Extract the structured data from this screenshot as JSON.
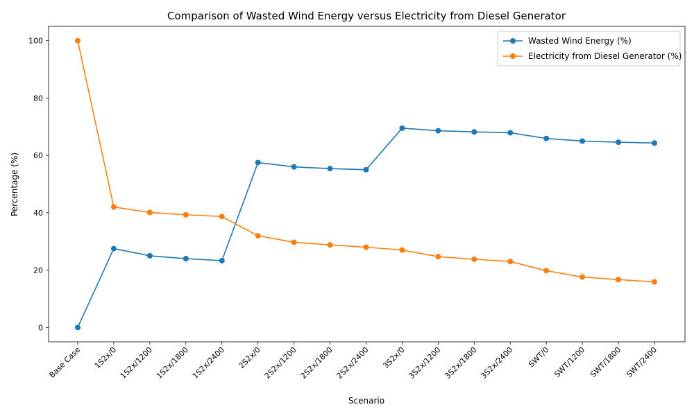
{
  "chart_data": {
    "type": "line",
    "title": "Comparison of Wasted Wind Energy versus Electricity from Diesel Generator",
    "xlabel": "Scenario",
    "ylabel": "Percentage (%)",
    "categories": [
      "Base Case",
      "1S2x/0",
      "1S2x/1200",
      "1S2x/1800",
      "1S2x/2400",
      "2S2x/0",
      "2S2x/1200",
      "2S2x/1800",
      "2S2x/2400",
      "3S2x/0",
      "3S2x/1200",
      "3S2x/1800",
      "3S2x/2400",
      "SWT/0",
      "SWT/1200",
      "SWT/1800",
      "SWT/2400"
    ],
    "ylim": [
      -5,
      105
    ],
    "yticks": [
      0,
      20,
      40,
      60,
      80,
      100
    ],
    "grid": false,
    "legend_position": "top-right",
    "series": [
      {
        "name": "Wasted Wind Energy (%)",
        "color": "#1f77b4",
        "values": [
          0,
          27.5,
          25,
          24,
          23.3,
          57.5,
          56,
          55.4,
          55,
          69.5,
          68.6,
          68.2,
          67.9,
          65.9,
          65,
          64.6,
          64.3
        ]
      },
      {
        "name": "Electricity from Diesel Generator (%)",
        "color": "#ff7f0e",
        "values": [
          100,
          42,
          40.1,
          39.3,
          38.7,
          32,
          29.7,
          28.8,
          28,
          27,
          24.7,
          23.8,
          23,
          19.8,
          17.6,
          16.7,
          15.9
        ]
      }
    ]
  }
}
